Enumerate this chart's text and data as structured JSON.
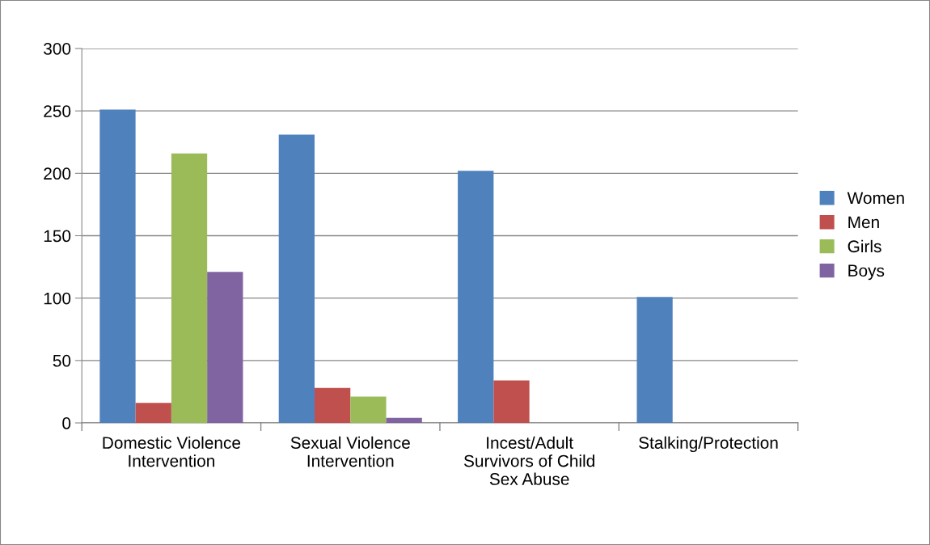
{
  "chart_data": {
    "type": "bar",
    "categories": [
      "Domestic Violence\nIntervention",
      "Sexual Violence\nIntervention",
      "Incest/Adult\nSurvivors of Child\nSex Abuse",
      "Stalking/Protection"
    ],
    "series": [
      {
        "name": "Women",
        "color": "#4f81bd",
        "values": [
          251,
          231,
          202,
          101
        ]
      },
      {
        "name": "Men",
        "color": "#c0504d",
        "values": [
          16,
          28,
          34,
          0
        ]
      },
      {
        "name": "Girls",
        "color": "#9bbb59",
        "values": [
          216,
          21,
          0,
          0
        ]
      },
      {
        "name": "Boys",
        "color": "#8064a2",
        "values": [
          121,
          4,
          0,
          0
        ]
      }
    ],
    "ylim": [
      0,
      300
    ],
    "yticks": [
      0,
      50,
      100,
      150,
      200,
      250,
      300
    ],
    "grid": "y",
    "legend": "right"
  }
}
